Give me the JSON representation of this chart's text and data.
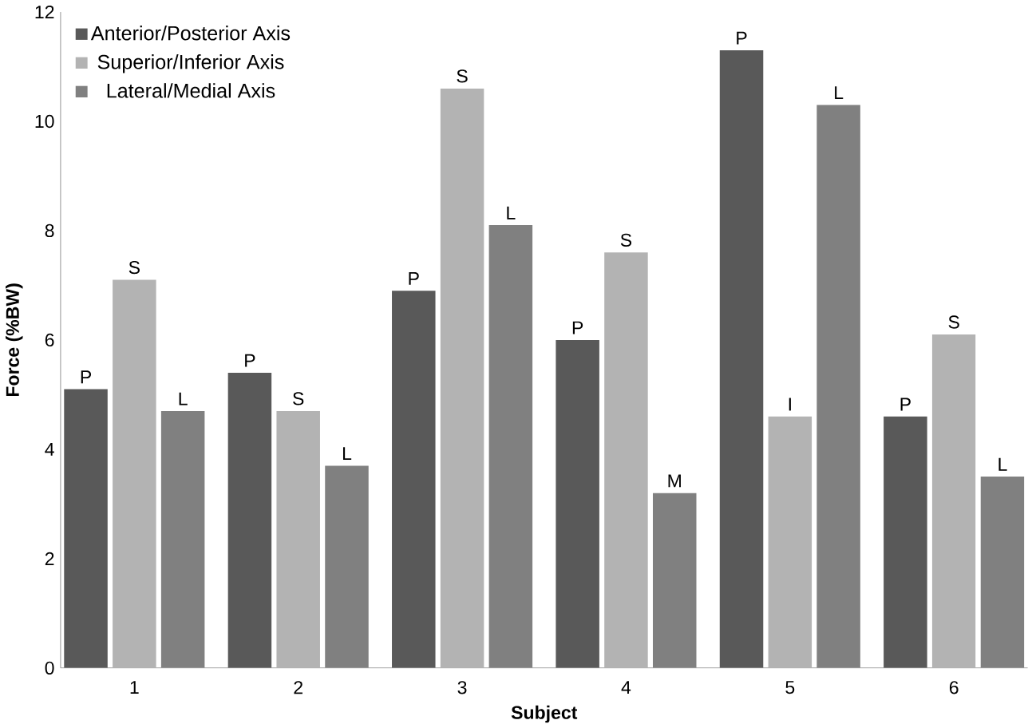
{
  "chart_data": {
    "type": "bar",
    "xlabel": "Subject",
    "ylabel": "Force (%BW)",
    "categories": [
      "1",
      "2",
      "3",
      "4",
      "5",
      "6"
    ],
    "series": [
      {
        "name": "Anterior/Posterior Axis",
        "color": "#595959",
        "values": [
          5.1,
          5.4,
          6.9,
          6.0,
          11.3,
          4.6
        ],
        "value_labels": [
          "P",
          "P",
          "P",
          "P",
          "P",
          "P"
        ]
      },
      {
        "name": "Superior/Inferior Axis",
        "color": "#b3b3b3",
        "values": [
          7.1,
          4.7,
          10.6,
          7.6,
          4.6,
          6.1
        ],
        "value_labels": [
          "S",
          "S",
          "S",
          "S",
          "I",
          "S"
        ]
      },
      {
        "name": "Lateral/Medial Axis",
        "color": "#808080",
        "values": [
          4.7,
          3.7,
          8.1,
          3.2,
          10.3,
          3.5
        ],
        "value_labels": [
          "L",
          "L",
          "L",
          "M",
          "L",
          "L"
        ]
      }
    ],
    "ylim": [
      0,
      12
    ],
    "yticks": [
      0,
      2,
      4,
      6,
      8,
      10,
      12
    ],
    "grid": false,
    "legend": "top left"
  }
}
